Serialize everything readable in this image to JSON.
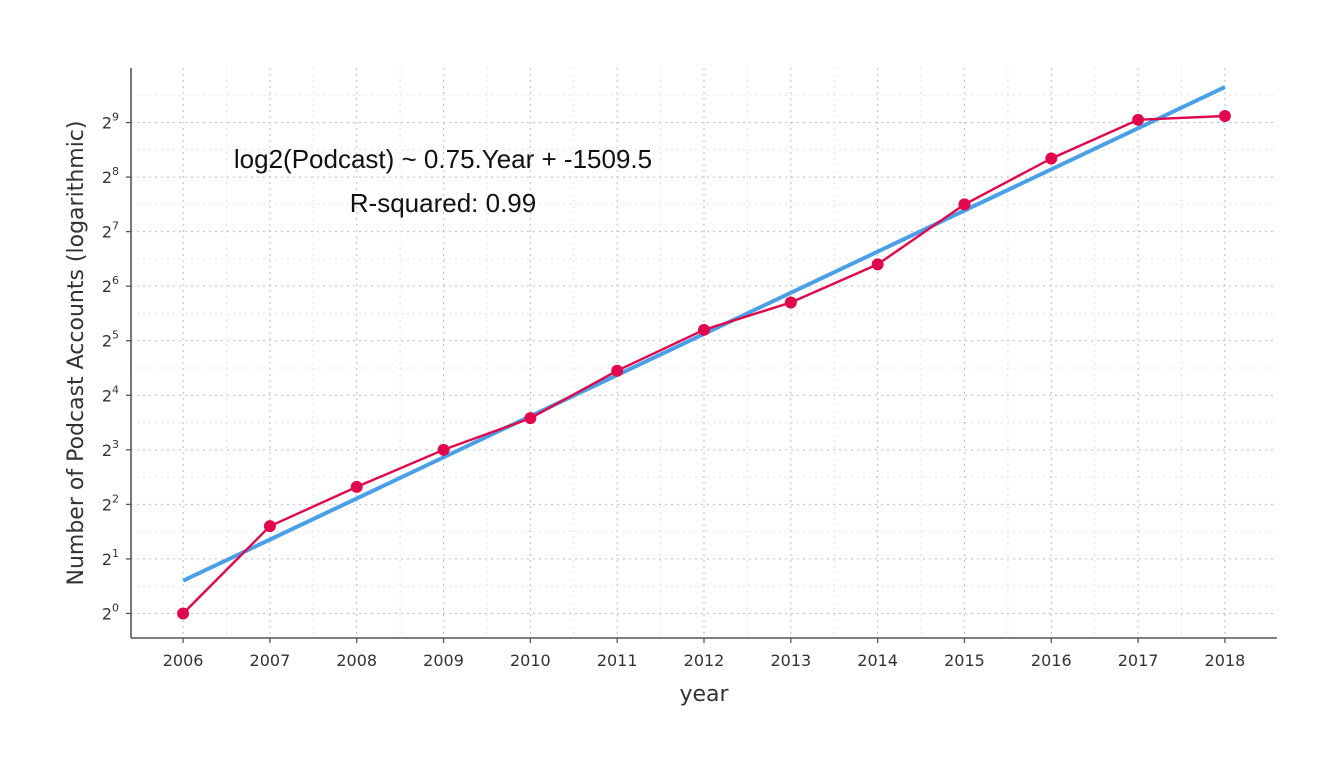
{
  "chart_data": {
    "type": "line",
    "title": "",
    "xlabel": "year",
    "ylabel": "Number of Podcast Accounts (logarithmic)",
    "x": [
      2006,
      2007,
      2008,
      2009,
      2010,
      2011,
      2012,
      2013,
      2014,
      2015,
      2016,
      2017,
      2018
    ],
    "y_scale": "log2",
    "xlim": [
      2005.4,
      2018.6
    ],
    "ylim_log2": [
      -0.45,
      10.0
    ],
    "y_tick_exponents": [
      0,
      1,
      2,
      3,
      4,
      5,
      6,
      7,
      8,
      9
    ],
    "y_tick_base": "2",
    "grid": true,
    "series": [
      {
        "kind": "observed",
        "color": "#e0074c",
        "values_log2": [
          0.0,
          1.6,
          2.32,
          3.0,
          3.58,
          4.45,
          5.2,
          5.7,
          6.4,
          7.5,
          8.34,
          9.05,
          9.12
        ]
      },
      {
        "kind": "fit",
        "color": "#4aa0e6",
        "slope": 0.75,
        "intercept": -1509.5,
        "x_range": [
          2006,
          2018
        ],
        "y_range_log2": [
          0.6,
          9.65
        ]
      }
    ],
    "annotations": {
      "equation": "log2(Podcast) ~ 0.75.Year + -1509.5",
      "r_squared": "R-squared: 0.99"
    }
  }
}
